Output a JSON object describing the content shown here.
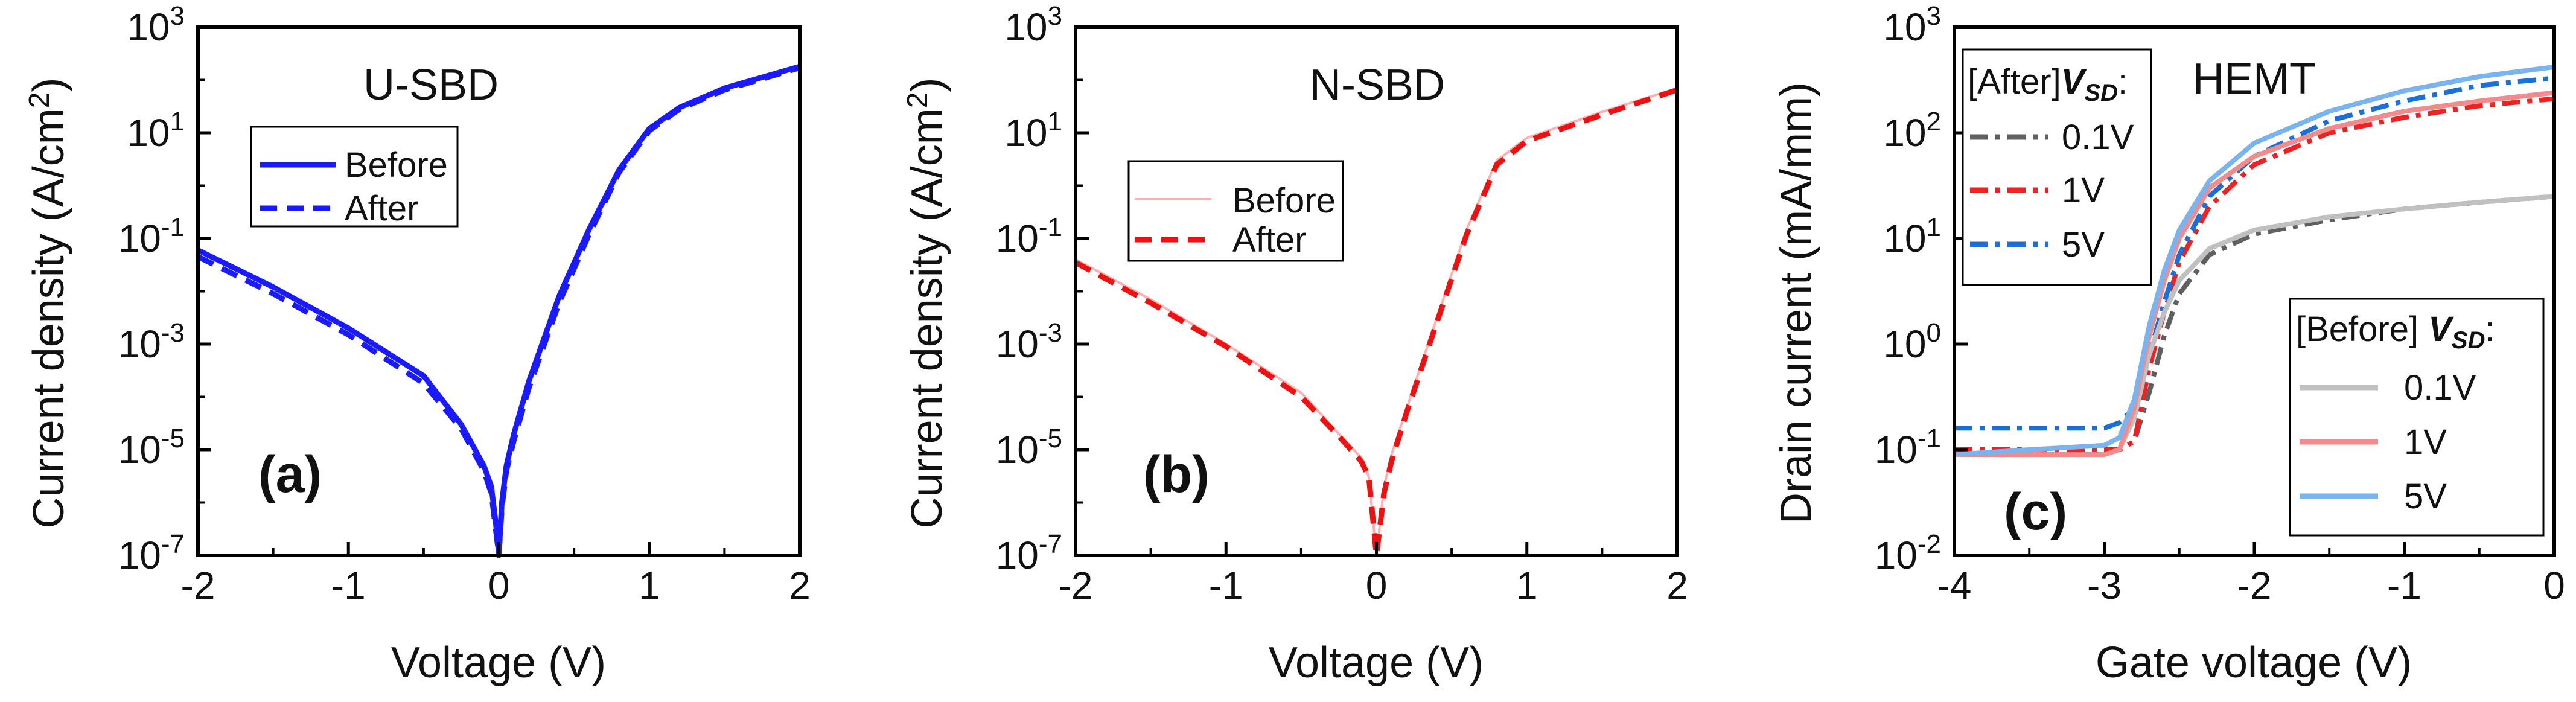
{
  "chart_data": [
    {
      "type": "line",
      "id": "a",
      "panel_label": "(a)",
      "title": "U-SBD",
      "xlabel": "Voltage (V)",
      "ylabel_main": "Current density (A/cm",
      "ylabel_sup": "2",
      "ylabel_close": ")",
      "yscale": "log",
      "xlim": [
        -2,
        2
      ],
      "ylim_exp": [
        -7,
        3
      ],
      "xticks": [
        -2,
        -1,
        0,
        1,
        2
      ],
      "xtick_labels": [
        "-2",
        "-1",
        "0",
        "1",
        "2"
      ],
      "yticks_exp": [
        -7,
        -5,
        -3,
        -1,
        1,
        3
      ],
      "ytick_labels_base": [
        "10",
        "10",
        "10",
        "10",
        "10",
        "10"
      ],
      "ytick_labels_exp": [
        "-7",
        "-5",
        "-3",
        "-1",
        "1",
        "3"
      ],
      "legend_position": "top-left",
      "series": [
        {
          "name": "Before",
          "color": "#1a1aff",
          "dash": "solid",
          "x": [
            -2.0,
            -1.5,
            -1.0,
            -0.5,
            -0.25,
            -0.1,
            -0.05,
            -0.02,
            0.0,
            0.02,
            0.05,
            0.1,
            0.2,
            0.4,
            0.6,
            0.8,
            1.0,
            1.2,
            1.5,
            2.0
          ],
          "y": [
            0.06,
            0.012,
            0.002,
            0.00025,
            3e-05,
            5e-06,
            2e-06,
            4e-07,
            1e-07,
            1e-06,
            5e-06,
            2e-05,
            0.0002,
            0.008,
            0.15,
            2.0,
            12.0,
            30.0,
            70.0,
            180.0
          ]
        },
        {
          "name": "After",
          "color": "#1a1aff",
          "dash": "dashed",
          "x": [
            -2.0,
            -1.5,
            -1.0,
            -0.5,
            -0.25,
            -0.1,
            -0.05,
            -0.02,
            0.0,
            0.02,
            0.05,
            0.1,
            0.2,
            0.4,
            0.6,
            0.8,
            1.0,
            1.2,
            1.5,
            2.0
          ],
          "y": [
            0.045,
            0.009,
            0.0015,
            0.00018,
            2.5e-05,
            4e-06,
            1.5e-06,
            3e-07,
            1e-07,
            8e-07,
            4e-06,
            1.5e-05,
            0.00015,
            0.006,
            0.12,
            1.8,
            11.0,
            28.0,
            65.0,
            170.0
          ]
        }
      ]
    },
    {
      "type": "line",
      "id": "b",
      "panel_label": "(b)",
      "title": "N-SBD",
      "xlabel": "Voltage (V)",
      "ylabel_main": "Current density (A/cm",
      "ylabel_sup": "2",
      "ylabel_close": ")",
      "yscale": "log",
      "xlim": [
        -2,
        2
      ],
      "ylim_exp": [
        -7,
        3
      ],
      "xticks": [
        -2,
        -1,
        0,
        1,
        2
      ],
      "xtick_labels": [
        "-2",
        "-1",
        "0",
        "1",
        "2"
      ],
      "yticks_exp": [
        -7,
        -5,
        -3,
        -1,
        1,
        3
      ],
      "ytick_labels_base": [
        "10",
        "10",
        "10",
        "10",
        "10",
        "10"
      ],
      "ytick_labels_exp": [
        "-7",
        "-5",
        "-3",
        "-1",
        "1",
        "3"
      ],
      "legend_position": "top-left",
      "series": [
        {
          "name": "Before",
          "color": "#ffb0b0",
          "dash": "solid",
          "x": [
            -2.0,
            -1.5,
            -1.0,
            -0.5,
            -0.25,
            -0.1,
            -0.05,
            0.0,
            0.05,
            0.1,
            0.2,
            0.4,
            0.6,
            0.8,
            1.0,
            1.5,
            2.0
          ],
          "y": [
            0.04,
            0.007,
            0.001,
            0.00012,
            2e-05,
            7e-06,
            3e-06,
            1e-07,
            2e-06,
            8e-06,
            6e-05,
            0.003,
            0.15,
            3.0,
            8.0,
            25.0,
            70.0
          ]
        },
        {
          "name": "After",
          "color": "#ee1111",
          "dash": "dashed",
          "x": [
            -2.0,
            -1.5,
            -1.0,
            -0.5,
            -0.25,
            -0.1,
            -0.05,
            0.0,
            0.05,
            0.1,
            0.2,
            0.4,
            0.6,
            0.8,
            1.0,
            1.5,
            2.0
          ],
          "y": [
            0.035,
            0.006,
            0.0009,
            0.0001,
            1.8e-05,
            6e-06,
            3e-06,
            1e-07,
            1.5e-06,
            6e-06,
            5e-05,
            0.0025,
            0.12,
            2.5,
            7.0,
            22.0,
            65.0
          ]
        }
      ]
    },
    {
      "type": "line",
      "id": "c",
      "panel_label": "(c)",
      "title": "HEMT",
      "xlabel": "Gate voltage (V)",
      "ylabel_main": "Drain current (mA/mm)",
      "ylabel_sup": "",
      "ylabel_close": "",
      "yscale": "log",
      "xlim": [
        -4,
        0
      ],
      "ylim_exp": [
        -2,
        3
      ],
      "xticks": [
        -4,
        -3,
        -2,
        -1,
        0
      ],
      "xtick_labels": [
        "-4",
        "-3",
        "-2",
        "-1",
        "0"
      ],
      "yticks_exp": [
        -2,
        -1,
        0,
        1,
        2,
        3
      ],
      "ytick_labels_base": [
        "10",
        "10",
        "10",
        "10",
        "10",
        "10"
      ],
      "ytick_labels_exp": [
        "-2",
        "-1",
        "0",
        "1",
        "2",
        "3"
      ],
      "legend_after_header_prefix": "[After]",
      "legend_before_header_prefix": "[Before] ",
      "legend_vsd_main": "V",
      "legend_vsd_sub": "SD",
      "legend_colon": ":",
      "series": [
        {
          "name": "0.1V",
          "group": "After",
          "color": "#606060",
          "dash": "dashdot",
          "x": [
            -4.0,
            -3.5,
            -3.0,
            -2.9,
            -2.8,
            -2.7,
            -2.6,
            -2.5,
            -2.3,
            -2.0,
            -1.5,
            -1.0,
            -0.5,
            0.0
          ],
          "y": [
            0.1,
            0.1,
            0.1,
            0.1,
            0.12,
            0.35,
            1.2,
            3.0,
            7.0,
            11.0,
            15.0,
            19.0,
            22.0,
            25.0
          ]
        },
        {
          "name": "1V",
          "group": "After",
          "color": "#ee2222",
          "dash": "dashdot",
          "x": [
            -4.0,
            -3.5,
            -3.0,
            -2.9,
            -2.8,
            -2.7,
            -2.6,
            -2.5,
            -2.3,
            -2.0,
            -1.5,
            -1.0,
            -0.5,
            0.0
          ],
          "y": [
            0.1,
            0.1,
            0.1,
            0.1,
            0.12,
            0.6,
            2.0,
            6.0,
            20.0,
            50.0,
            100.0,
            140.0,
            180.0,
            210.0
          ]
        },
        {
          "name": "5V",
          "group": "After",
          "color": "#1a6fd8",
          "dash": "dashdot",
          "x": [
            -4.0,
            -3.5,
            -3.0,
            -2.9,
            -2.8,
            -2.7,
            -2.6,
            -2.5,
            -2.3,
            -2.0,
            -1.5,
            -1.0,
            -0.5,
            0.0
          ],
          "y": [
            0.16,
            0.16,
            0.16,
            0.18,
            0.25,
            0.8,
            2.5,
            7.0,
            25.0,
            60.0,
            130.0,
            200.0,
            280.0,
            330.0
          ]
        },
        {
          "name": "0.1V",
          "group": "Before",
          "color": "#c0c0c0",
          "dash": "solid",
          "x": [
            -4.0,
            -3.5,
            -3.0,
            -2.9,
            -2.8,
            -2.7,
            -2.6,
            -2.5,
            -2.3,
            -2.0,
            -1.5,
            -1.0,
            -0.5,
            0.0
          ],
          "y": [
            0.09,
            0.09,
            0.09,
            0.1,
            0.2,
            0.8,
            2.0,
            4.0,
            8.0,
            12.0,
            16.0,
            19.0,
            22.0,
            25.0
          ]
        },
        {
          "name": "1V",
          "group": "Before",
          "color": "#f28b8b",
          "dash": "solid",
          "x": [
            -4.0,
            -3.5,
            -3.0,
            -2.9,
            -2.8,
            -2.7,
            -2.6,
            -2.5,
            -2.3,
            -2.0,
            -1.5,
            -1.0,
            -0.5,
            0.0
          ],
          "y": [
            0.09,
            0.09,
            0.09,
            0.1,
            0.25,
            1.2,
            4.0,
            10.0,
            30.0,
            60.0,
            110.0,
            160.0,
            200.0,
            240.0
          ]
        },
        {
          "name": "5V",
          "group": "Before",
          "color": "#7ab4ee",
          "dash": "solid",
          "x": [
            -4.0,
            -3.5,
            -3.0,
            -2.9,
            -2.8,
            -2.7,
            -2.6,
            -2.5,
            -2.3,
            -2.0,
            -1.5,
            -1.0,
            -0.5,
            0.0
          ],
          "y": [
            0.09,
            0.1,
            0.11,
            0.13,
            0.3,
            1.5,
            5.0,
            12.0,
            35.0,
            80.0,
            160.0,
            250.0,
            340.0,
            420.0
          ]
        }
      ]
    }
  ]
}
